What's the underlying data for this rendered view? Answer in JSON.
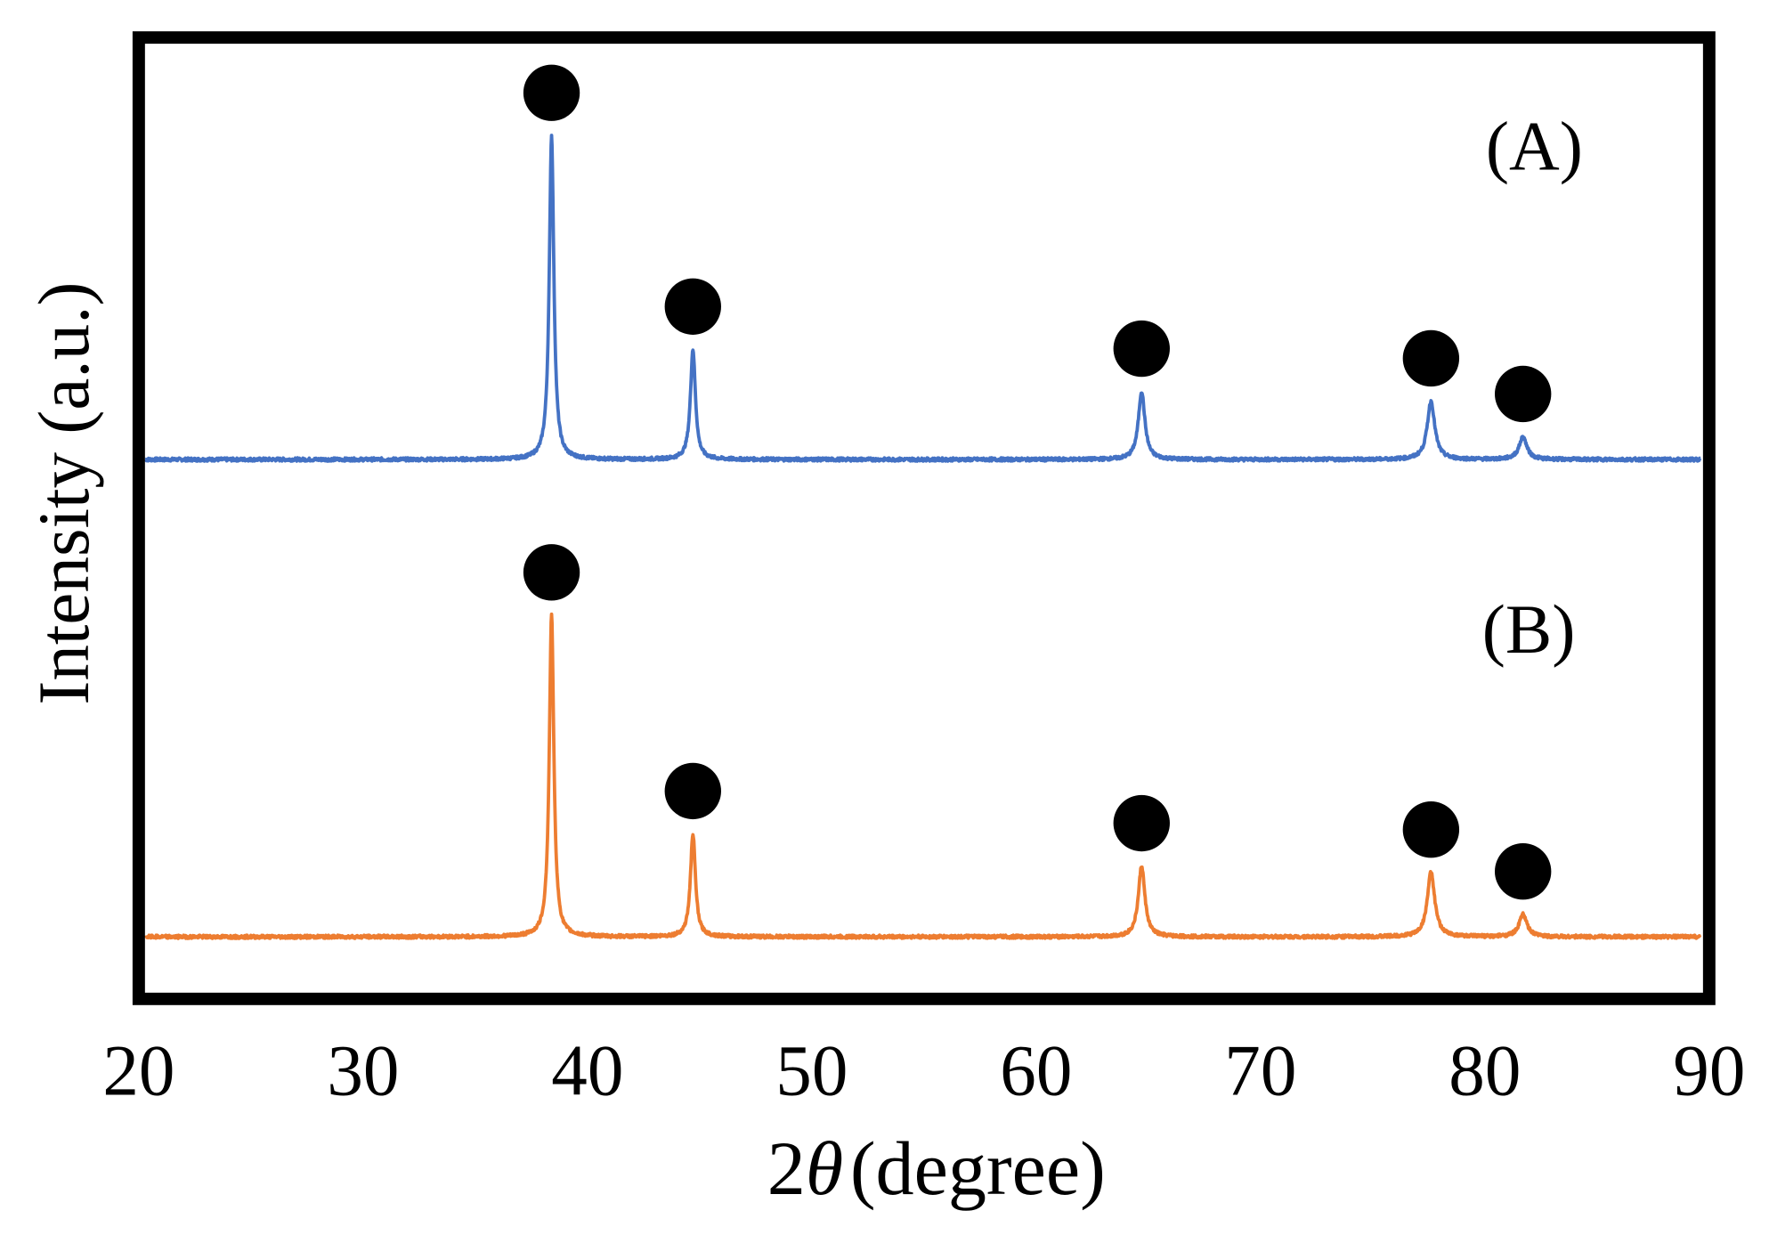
{
  "chart_data": {
    "type": "line",
    "title": "",
    "xlabel": "2θ (degree)",
    "xlabel_parts": {
      "prefix": "2",
      "symbol": "θ",
      "suffix": "(degree)"
    },
    "ylabel": "Intensity (a.u.)",
    "xlim": [
      20,
      90
    ],
    "xticks": [
      20,
      30,
      40,
      50,
      60,
      70,
      80,
      90
    ],
    "xtick_labels": [
      "20",
      "30",
      "40",
      "50",
      "60",
      "70",
      "80",
      "90"
    ],
    "yticks": [],
    "grid": false,
    "marker_symbol": "filled-circle",
    "series": [
      {
        "name": "(A)",
        "color": "#4472c4",
        "baseline": 0,
        "peaks": [
          {
            "x": 38.4,
            "intensity": 100
          },
          {
            "x": 44.7,
            "intensity": 34
          },
          {
            "x": 64.7,
            "intensity": 21
          },
          {
            "x": 77.6,
            "intensity": 18
          },
          {
            "x": 81.7,
            "intensity": 7
          }
        ]
      },
      {
        "name": "(B)",
        "color": "#ed7d31",
        "baseline": 0,
        "peaks": [
          {
            "x": 38.4,
            "intensity": 100
          },
          {
            "x": 44.7,
            "intensity": 32
          },
          {
            "x": 64.7,
            "intensity": 22
          },
          {
            "x": 77.6,
            "intensity": 20
          },
          {
            "x": 81.7,
            "intensity": 7
          }
        ]
      }
    ]
  }
}
